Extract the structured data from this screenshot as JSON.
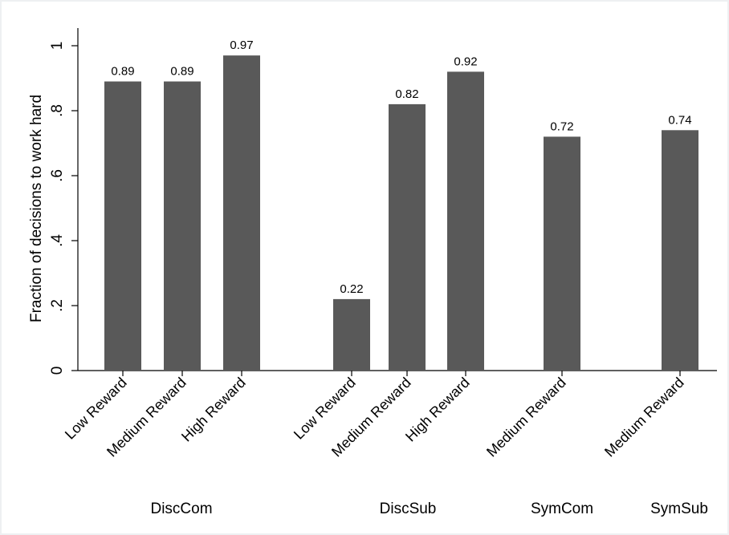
{
  "chart_data": {
    "type": "bar",
    "ylabel": "Fraction of decisions to work hard",
    "ylim": [
      0,
      1.05
    ],
    "yticks": [
      0,
      0.2,
      0.4,
      0.6,
      0.8,
      1
    ],
    "ytick_labels": [
      "0",
      ".2",
      ".4",
      ".6",
      ".8",
      "1"
    ],
    "grid": false,
    "groups": [
      {
        "name": "DiscCom",
        "categories": [
          "Low Reward",
          "Medium Reward",
          "High Reward"
        ],
        "values": [
          0.89,
          0.89,
          0.97
        ],
        "labels": [
          "0.89",
          "0.89",
          "0.97"
        ]
      },
      {
        "name": "DiscSub",
        "categories": [
          "Low Reward",
          "Medium Reward",
          "High Reward"
        ],
        "values": [
          0.22,
          0.82,
          0.92
        ],
        "labels": [
          "0.22",
          "0.82",
          "0.92"
        ]
      },
      {
        "name": "SymCom",
        "categories": [
          "Medium Reward"
        ],
        "values": [
          0.72
        ],
        "labels": [
          "0.72"
        ]
      },
      {
        "name": "SymSub",
        "categories": [
          "Medium Reward"
        ],
        "values": [
          0.74
        ],
        "labels": [
          "0.74"
        ]
      }
    ],
    "colors": {
      "bar": "#595959",
      "axis": "#000000",
      "background": "#ffffff"
    }
  }
}
